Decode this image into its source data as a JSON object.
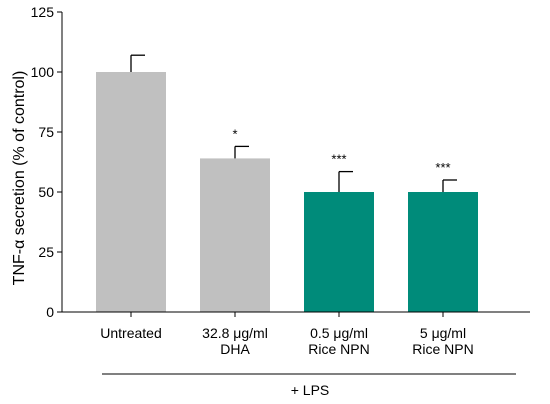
{
  "chart_data": {
    "type": "bar",
    "ylabel": "TNF-α secretion (% of control)",
    "ylim": [
      0,
      125
    ],
    "yticks": [
      0,
      25,
      50,
      75,
      100,
      125
    ],
    "grid": false,
    "legend": "none",
    "group_label": "+ LPS",
    "categories": [
      {
        "line1": "Untreated",
        "line2": ""
      },
      {
        "line1": "32.8 μg/ml",
        "line2": "DHA"
      },
      {
        "line1": "0.5 μg/ml",
        "line2": "Rice NPN"
      },
      {
        "line1": "5 μg/ml",
        "line2": "Rice NPN"
      }
    ],
    "values": [
      100,
      64,
      50,
      50
    ],
    "errors": [
      7,
      5,
      8.5,
      5
    ],
    "significance": [
      "",
      "*",
      "***",
      "***"
    ],
    "colors": [
      "#c0c0c0",
      "#c0c0c0",
      "#008b7a",
      "#008b7a"
    ]
  }
}
